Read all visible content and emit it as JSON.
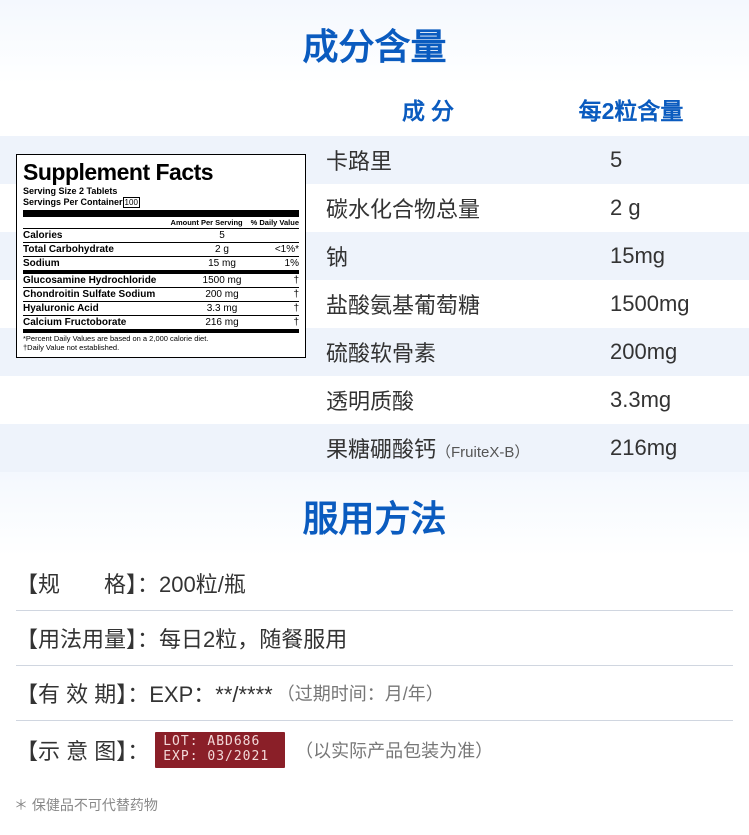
{
  "section1_title": "成分含量",
  "header": {
    "col1": "成分",
    "col2": "每2粒含量"
  },
  "rows": [
    {
      "name": "卡路里",
      "amount": "5"
    },
    {
      "name": "碳水化合物总量",
      "amount": "2 g"
    },
    {
      "name": "钠",
      "amount": "15mg"
    },
    {
      "name": "盐酸氨基葡萄糖",
      "amount": "1500mg"
    },
    {
      "name": "硫酸软骨素",
      "amount": "200mg"
    },
    {
      "name": "透明质酸",
      "amount": "3.3mg"
    },
    {
      "name": "果糖硼酸钙",
      "name_sub": "（FruiteX-B）",
      "amount": "216mg"
    }
  ],
  "facts": {
    "title": "Supplement Facts",
    "serving_size": "Serving Size 2 Tablets",
    "servings_per": "Servings Per Container",
    "servings_box": "100",
    "hdr_amount": "Amount Per Serving",
    "hdr_dv": "% Daily Value",
    "lines": [
      {
        "n": "Calories",
        "a": "5",
        "d": "",
        "heavy": false
      },
      {
        "n": "Total Carbohydrate",
        "a": "2 g",
        "d": "<1%*",
        "heavy": false
      },
      {
        "n": "Sodium",
        "a": "15 mg",
        "d": "1%",
        "heavy": true
      },
      {
        "n": "Glucosamine Hydrochloride",
        "a": "1500 mg",
        "d": "†",
        "heavy": false
      },
      {
        "n": "Chondroitin Sulfate Sodium",
        "a": "200 mg",
        "d": "†",
        "heavy": false
      },
      {
        "n": "Hyaluronic Acid",
        "a": "3.3 mg",
        "d": "†",
        "heavy": false
      },
      {
        "n": "Calcium Fructoborate",
        "a": "216 mg",
        "d": "†",
        "heavy": true
      }
    ],
    "note1": "*Percent Daily Values are based on a 2,000 calorie diet.",
    "note2": "†Daily Value not established."
  },
  "section2_title": "服用方法",
  "usage": {
    "spec_label": "【规　　格】：",
    "spec_value": "200粒/瓶",
    "dosage_label": "【用法用量】：",
    "dosage_value": "每日2粒，随餐服用",
    "expiry_label": "【有 效 期】：",
    "expiry_value": "EXP：**/****",
    "expiry_note": "（过期时间：月/年）",
    "diagram_label": "【示 意 图】：",
    "lot_line1": "LOT:  ABD686",
    "lot_line2": "EXP:  03/2021",
    "diagram_note": "（以实际产品包装为准）"
  },
  "footnote": "＊ 保健品不可代替药物"
}
